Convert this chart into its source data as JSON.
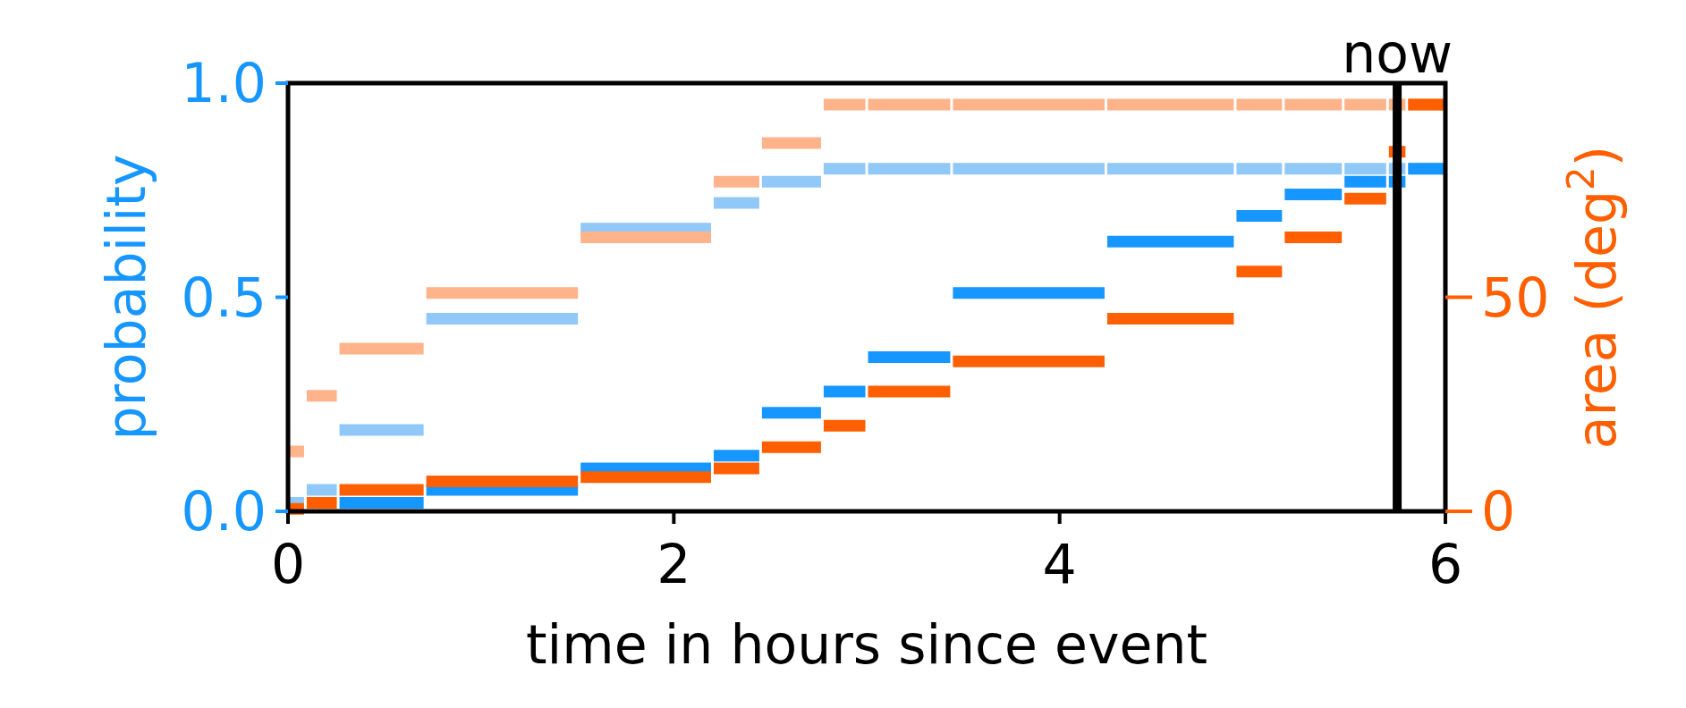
{
  "chart_data": {
    "type": "step",
    "xlabel": "time in hours since event",
    "ylabel": "probability",
    "y2label": "area (deg$^{2}$)",
    "x": [
      0,
      0.09,
      0.26,
      0.71,
      1.51,
      2.2,
      2.45,
      2.77,
      3.0,
      3.44,
      4.24,
      4.91,
      5.16,
      5.47,
      5.7,
      5.8,
      6.0
    ],
    "series": [
      {
        "color": "#90c8f8",
        "values": [
          0.02,
          0.05,
          0.19,
          0.45,
          0.66,
          0.72,
          0.77,
          0.8,
          0.8,
          0.8,
          0.8,
          0.8,
          0.8,
          0.8,
          0.8,
          0.8,
          0.8
        ]
      },
      {
        "color": "#ffb38a",
        "axis": "y2",
        "values": [
          14,
          27,
          38,
          51,
          64,
          77,
          86,
          95,
          95,
          95,
          95,
          95,
          95,
          95,
          95,
          95,
          95
        ]
      },
      {
        "color": "#1696ff",
        "values": [
          null,
          null,
          0.02,
          0.05,
          0.1,
          0.13,
          0.23,
          0.28,
          0.36,
          0.51,
          0.63,
          0.69,
          0.74,
          0.77,
          0.77,
          0.8,
          0.8
        ]
      },
      {
        "color": "#ff5f00",
        "axis": "y2",
        "values": [
          0.6,
          2,
          5,
          7,
          8,
          10,
          15,
          20,
          28,
          35,
          45,
          56,
          64,
          73,
          84,
          95,
          95
        ]
      }
    ],
    "xlim": [
      0,
      6
    ],
    "xticks": [
      0,
      2,
      4,
      6
    ],
    "ylim": [
      0,
      1
    ],
    "yticks": [
      {
        "value": 0,
        "label": "0.0"
      },
      {
        "value": 0.5,
        "label": "0.5"
      },
      {
        "value": 1,
        "label": "1.0"
      }
    ],
    "y2lim": [
      0,
      100
    ],
    "y2ticks": [
      0,
      50
    ],
    "ref_lines": [
      {
        "axis": "x",
        "value": 5.75,
        "label": "now",
        "color": "#000000"
      }
    ],
    "grid": false
  }
}
